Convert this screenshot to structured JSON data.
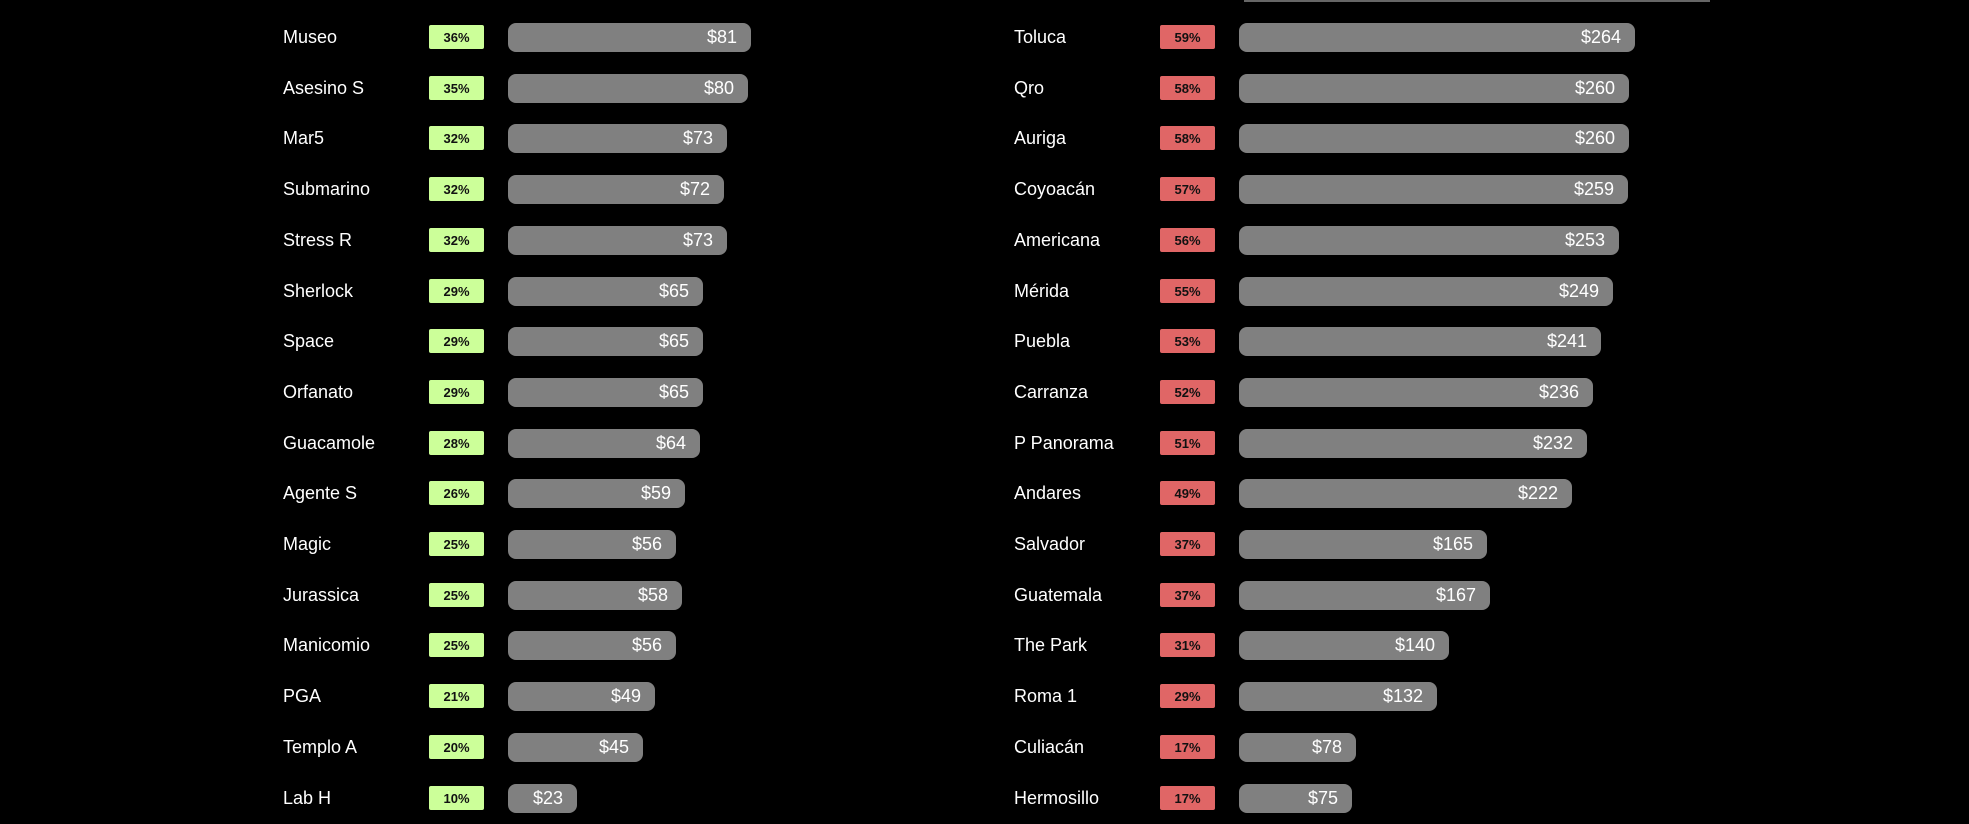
{
  "chart_data": [
    {
      "type": "bar",
      "orientation": "horizontal",
      "badge_color": "#ccff99",
      "bar_color": "#808080",
      "categories": [
        "Museo",
        "Asesino S",
        "Mar5",
        "Submarino",
        "Stress R",
        "Sherlock",
        "Space",
        "Orfanato",
        "Guacamole",
        "Agente S",
        "Magic",
        "Jurassica",
        "Manicomio",
        "PGA",
        "Templo A",
        "Lab H"
      ],
      "percent_labels": [
        "36%",
        "35%",
        "32%",
        "32%",
        "32%",
        "29%",
        "29%",
        "29%",
        "28%",
        "26%",
        "25%",
        "25%",
        "25%",
        "21%",
        "20%",
        "10%"
      ],
      "value_labels": [
        "$81",
        "$80",
        "$73",
        "$72",
        "$73",
        "$65",
        "$65",
        "$65",
        "$64",
        "$59",
        "$56",
        "$58",
        "$56",
        "$49",
        "$45",
        "$23"
      ],
      "values": [
        81,
        80,
        73,
        72,
        73,
        65,
        65,
        65,
        64,
        59,
        56,
        58,
        56,
        49,
        45,
        23
      ]
    },
    {
      "type": "bar",
      "orientation": "horizontal",
      "badge_color": "#e06666",
      "bar_color": "#808080",
      "categories": [
        "Toluca",
        "Qro",
        "Auriga",
        "Coyoacán",
        "Americana",
        "Mérida",
        "Puebla",
        "Carranza",
        "P Panorama",
        "Andares",
        "Salvador",
        "Guatemala",
        "The Park",
        "Roma 1",
        "Culiacán",
        "Hermosillo"
      ],
      "percent_labels": [
        "59%",
        "58%",
        "58%",
        "57%",
        "56%",
        "55%",
        "53%",
        "52%",
        "51%",
        "49%",
        "37%",
        "37%",
        "31%",
        "29%",
        "17%",
        "17%"
      ],
      "value_labels": [
        "$264",
        "$260",
        "$260",
        "$259",
        "$253",
        "$249",
        "$241",
        "$236",
        "$232",
        "$222",
        "$165",
        "$167",
        "$140",
        "$132",
        "$78",
        "$75"
      ],
      "values": [
        264,
        260,
        260,
        259,
        253,
        249,
        241,
        236,
        232,
        222,
        165,
        167,
        140,
        132,
        78,
        75
      ]
    }
  ]
}
